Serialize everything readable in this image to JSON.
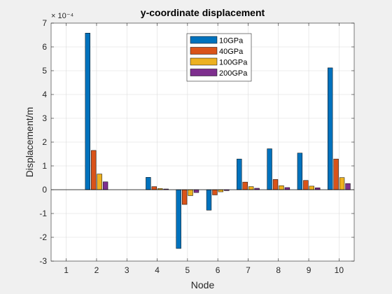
{
  "chart_data": {
    "type": "bar",
    "title": "y-coordinate displacement",
    "xlabel": "Node",
    "ylabel": "Displacement/m",
    "y_scale_label": "× 10⁻⁴",
    "y_scale_factor": 0.0001,
    "categories": [
      "1",
      "2",
      "3",
      "4",
      "5",
      "6",
      "7",
      "8",
      "9",
      "10"
    ],
    "y_ticks": [
      "-3",
      "-2",
      "-1",
      "0",
      "1",
      "2",
      "3",
      "4",
      "5",
      "6",
      "7"
    ],
    "ylim": [
      -3,
      7
    ],
    "grid": true,
    "legend_position": "top-center",
    "series": [
      {
        "name": "10GPa",
        "color": "#0072BD",
        "values": [
          0,
          6.58,
          0,
          0.52,
          -2.47,
          -0.86,
          1.29,
          1.72,
          1.54,
          5.12
        ]
      },
      {
        "name": "40GPa",
        "color": "#D95319",
        "values": [
          0,
          1.65,
          0,
          0.13,
          -0.62,
          -0.22,
          0.32,
          0.43,
          0.39,
          1.29
        ]
      },
      {
        "name": "100GPa",
        "color": "#EDB120",
        "values": [
          0,
          0.66,
          0,
          0.05,
          -0.25,
          -0.09,
          0.13,
          0.17,
          0.15,
          0.51
        ]
      },
      {
        "name": "200GPa",
        "color": "#7E2F8E",
        "values": [
          0,
          0.33,
          0,
          0.03,
          -0.12,
          -0.04,
          0.06,
          0.09,
          0.08,
          0.26
        ]
      }
    ]
  }
}
